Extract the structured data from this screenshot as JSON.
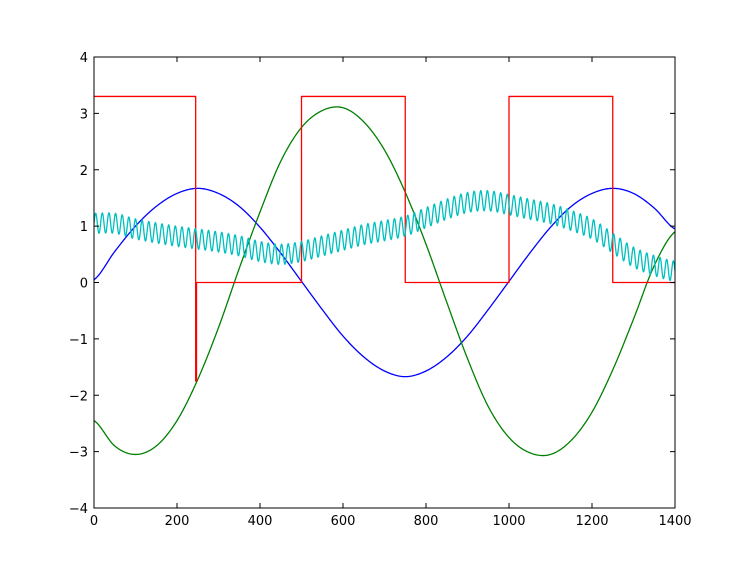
{
  "chart_data": {
    "type": "line",
    "title": "",
    "xlabel": "",
    "ylabel": "",
    "xlim": [
      0,
      1400
    ],
    "ylim": [
      -4,
      4
    ],
    "x_ticks": [
      0,
      200,
      400,
      600,
      800,
      1000,
      1200,
      1400
    ],
    "y_ticks": [
      -4,
      -3,
      -2,
      -1,
      0,
      1,
      2,
      3,
      4
    ],
    "x_tick_labels": [
      "0",
      "200",
      "400",
      "600",
      "800",
      "1000",
      "1200",
      "1400"
    ],
    "y_tick_labels": [
      "−4",
      "−3",
      "−2",
      "−1",
      "0",
      "1",
      "2",
      "3",
      "4"
    ],
    "grid": false,
    "legend": "none",
    "series": [
      {
        "color": "#0000ff",
        "x": [
          0,
          50,
          100,
          150,
          200,
          250,
          300,
          350,
          400,
          450,
          500,
          550,
          600,
          650,
          700,
          750,
          800,
          850,
          900,
          950,
          1000,
          1050,
          1100,
          1150,
          1200,
          1250,
          1300,
          1350,
          1400
        ],
        "y": [
          0.05,
          0.55,
          1.0,
          1.35,
          1.58,
          1.67,
          1.58,
          1.35,
          0.98,
          0.52,
          0.02,
          -0.48,
          -0.95,
          -1.32,
          -1.57,
          -1.67,
          -1.57,
          -1.32,
          -0.95,
          -0.48,
          0.02,
          0.52,
          0.98,
          1.35,
          1.58,
          1.67,
          1.58,
          1.32,
          0.95
        ]
      },
      {
        "color": "#008000",
        "x": [
          0,
          50,
          100,
          150,
          200,
          250,
          300,
          350,
          400,
          450,
          500,
          550,
          600,
          650,
          700,
          750,
          800,
          850,
          900,
          950,
          1000,
          1050,
          1100,
          1150,
          1200,
          1250,
          1300,
          1350,
          1400
        ],
        "y": [
          -2.45,
          -2.9,
          -3.05,
          -2.9,
          -2.45,
          -1.72,
          -0.8,
          0.25,
          1.25,
          2.15,
          2.75,
          3.05,
          3.1,
          2.85,
          2.35,
          1.6,
          0.68,
          -0.35,
          -1.35,
          -2.2,
          -2.75,
          -3.02,
          -3.05,
          -2.8,
          -2.3,
          -1.55,
          -0.65,
          0.3,
          0.9
        ]
      },
      {
        "color": "#ff0000",
        "x": [
          0,
          245,
          245,
          247,
          247,
          500,
          500,
          750,
          750,
          1000,
          1000,
          1250,
          1250,
          1400
        ],
        "y": [
          3.3,
          3.3,
          -1.75,
          -1.75,
          0.0,
          0.0,
          3.3,
          3.3,
          0.0,
          0.0,
          3.3,
          3.3,
          0.0,
          0.0
        ]
      },
      {
        "color": "#00bfbf",
        "x": [
          0,
          50,
          100,
          150,
          200,
          250,
          300,
          350,
          400,
          450,
          500,
          550,
          600,
          650,
          700,
          750,
          800,
          850,
          900,
          950,
          1000,
          1050,
          1100,
          1150,
          1200,
          1250,
          1300,
          1350,
          1400
        ],
        "y": [
          1.05,
          1.05,
          0.95,
          0.88,
          0.82,
          0.77,
          0.72,
          0.65,
          0.55,
          0.5,
          0.55,
          0.65,
          0.75,
          0.85,
          0.92,
          1.0,
          1.15,
          1.3,
          1.42,
          1.45,
          1.38,
          1.3,
          1.22,
          1.1,
          0.95,
          0.7,
          0.45,
          0.3,
          0.2
        ],
        "oscillation_amplitude": 0.18,
        "oscillation_period": 16
      }
    ]
  }
}
